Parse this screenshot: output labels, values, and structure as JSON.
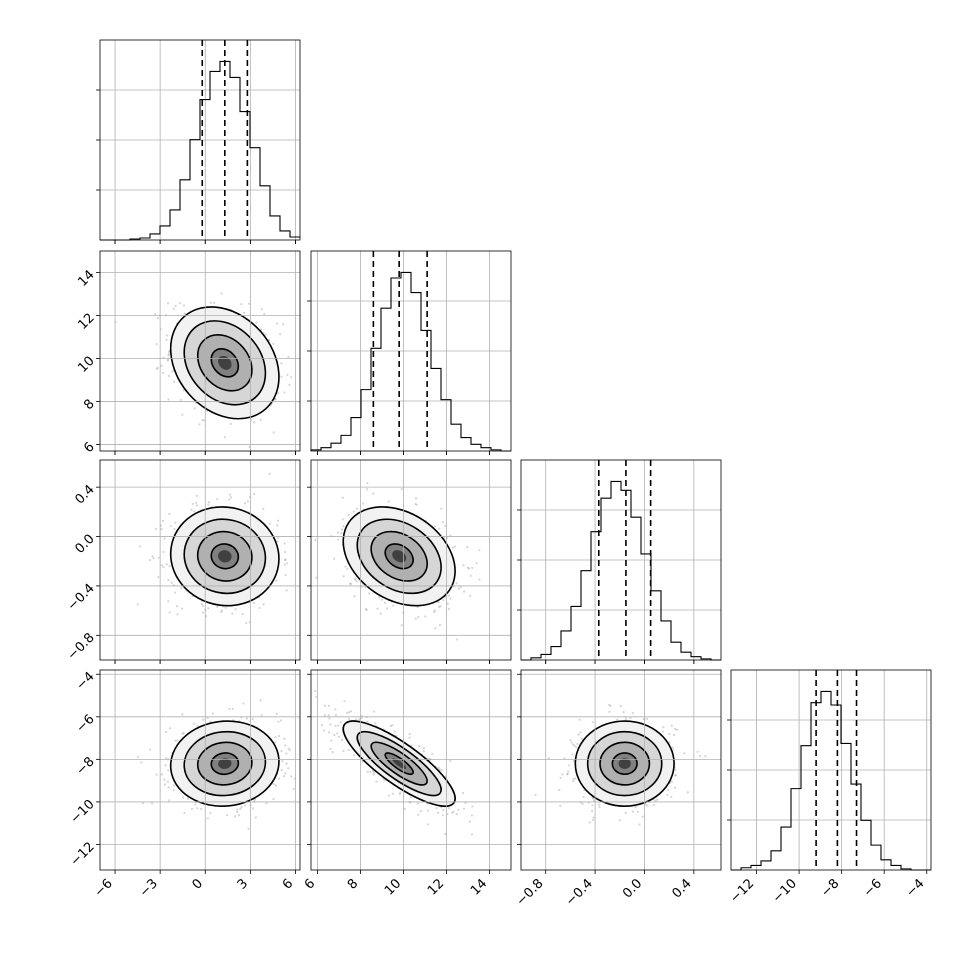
{
  "chart_data": {
    "type": "corner",
    "grid": true,
    "parameters": [
      {
        "range": [
          -7,
          6.3
        ],
        "ticks": [
          -6,
          -3,
          0,
          3,
          6
        ],
        "tick_labels": [
          "−6",
          "−3",
          "0",
          "3",
          "6"
        ],
        "mean": 1.3,
        "std": 1.8,
        "quantiles": [
          -0.2,
          1.3,
          2.8
        ]
      },
      {
        "range": [
          5.7,
          15.0
        ],
        "ticks": [
          6,
          8,
          10,
          12,
          14
        ],
        "tick_labels": [
          "6",
          "8",
          "10",
          "12",
          "14"
        ],
        "mean": 9.8,
        "std": 1.3,
        "quantiles": [
          8.6,
          9.8,
          11.1
        ]
      },
      {
        "range": [
          -1.0,
          0.62
        ],
        "ticks": [
          -0.8,
          -0.4,
          0.0,
          0.4
        ],
        "tick_labels": [
          "−0.8",
          "−0.4",
          "0.0",
          "0.4"
        ],
        "mean": -0.16,
        "std": 0.2,
        "quantiles": [
          -0.37,
          -0.15,
          0.05
        ]
      },
      {
        "range": [
          -13.2,
          -3.8
        ],
        "ticks": [
          -12,
          -10,
          -8,
          -6,
          -4
        ],
        "tick_labels": [
          "−12",
          "−10",
          "−8",
          "−6",
          "−4"
        ],
        "mean": -8.2,
        "std": 1.0,
        "quantiles": [
          -9.2,
          -8.2,
          -7.3
        ]
      }
    ],
    "histograms": [
      {
        "param": 0,
        "bin_edges": [
          -7,
          -6.335,
          -5.67,
          -5.005,
          -4.34,
          -3.675,
          -3.01,
          -2.345,
          -1.68,
          -1.015,
          -0.35,
          0.315,
          0.98,
          1.645,
          2.31,
          2.975,
          3.64,
          4.305,
          4.97,
          5.635,
          6.3
        ],
        "counts": [
          0,
          0,
          0,
          1,
          2,
          6,
          14,
          30,
          60,
          100,
          140,
          168,
          178,
          162,
          128,
          92,
          54,
          24,
          9,
          3
        ]
      },
      {
        "param": 1,
        "bin_edges": [
          5.7,
          6.165,
          6.63,
          7.095,
          7.56,
          8.025,
          8.49,
          8.955,
          9.42,
          9.885,
          10.35,
          10.815,
          11.28,
          11.745,
          12.21,
          12.675,
          13.14,
          13.605,
          14.07,
          14.535,
          15.0
        ],
        "counts": [
          1,
          3,
          7,
          14,
          30,
          55,
          92,
          128,
          155,
          160,
          142,
          108,
          74,
          46,
          24,
          12,
          6,
          3,
          1,
          0
        ]
      },
      {
        "param": 2,
        "bin_edges": [
          -1.0,
          -0.919,
          -0.838,
          -0.757,
          -0.676,
          -0.595,
          -0.514,
          -0.433,
          -0.352,
          -0.271,
          -0.19,
          -0.109,
          -0.028,
          0.053,
          0.134,
          0.215,
          0.296,
          0.377,
          0.458,
          0.539,
          0.62
        ],
        "counts": [
          0,
          2,
          5,
          12,
          26,
          48,
          80,
          115,
          145,
          160,
          152,
          128,
          95,
          62,
          35,
          16,
          7,
          3,
          1,
          0
        ]
      },
      {
        "param": 3,
        "bin_edges": [
          -13.2,
          -12.73,
          -12.26,
          -11.79,
          -11.32,
          -10.85,
          -10.38,
          -9.91,
          -9.44,
          -8.97,
          -8.5,
          -8.03,
          -7.56,
          -7.09,
          -6.62,
          -6.15,
          -5.68,
          -5.21,
          -4.74,
          -4.27,
          -3.8
        ],
        "counts": [
          0,
          2,
          4,
          8,
          17,
          38,
          72,
          110,
          148,
          158,
          146,
          112,
          76,
          44,
          22,
          9,
          4,
          1,
          0,
          0
        ]
      }
    ],
    "pairs": [
      {
        "x_param": 0,
        "y_param": 1,
        "correlation": -0.25
      },
      {
        "x_param": 0,
        "y_param": 2,
        "correlation": -0.05
      },
      {
        "x_param": 1,
        "y_param": 2,
        "correlation": -0.3
      },
      {
        "x_param": 0,
        "y_param": 3,
        "correlation": 0.05
      },
      {
        "x_param": 1,
        "y_param": 3,
        "correlation": -0.82
      },
      {
        "x_param": 2,
        "y_param": 3,
        "correlation": 0.0
      }
    ],
    "contour_levels_sigma": [
      0.5,
      1.0,
      1.5,
      2.0
    ]
  }
}
